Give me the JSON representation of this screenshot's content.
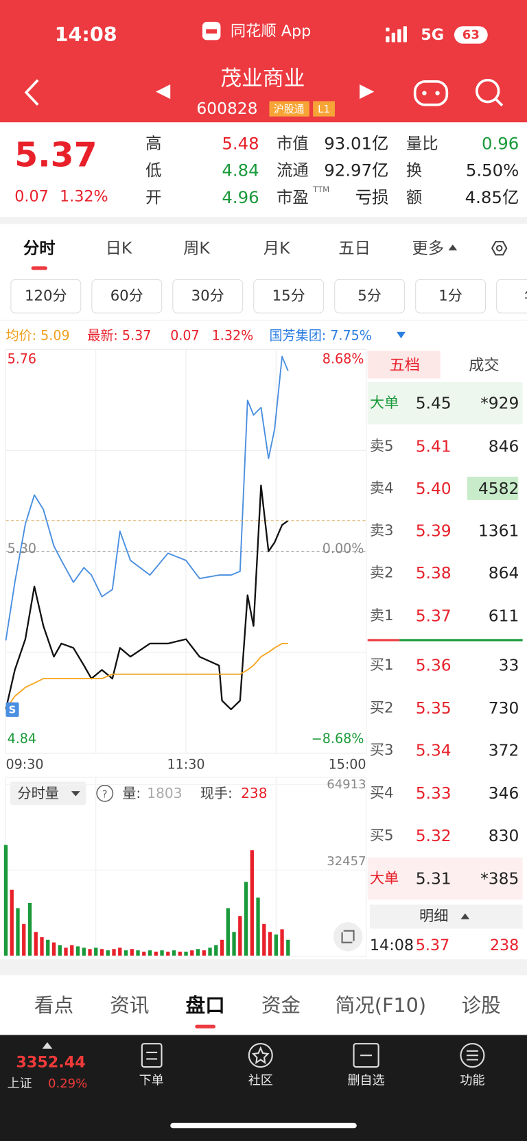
{
  "status_bar": {
    "time": "14:08",
    "app": "同花顺 App",
    "network": "5G",
    "battery": "63"
  },
  "header": {
    "title": "茂业商业",
    "code": "600828",
    "badges": [
      "沪股通",
      "L1"
    ]
  },
  "quote": {
    "price": "5.37",
    "change": "0.07",
    "change_pct": "1.32%",
    "stats": [
      {
        "label": "高",
        "value": "5.48",
        "color": "#e8202a"
      },
      {
        "label": "低",
        "value": "4.84",
        "color": "#1a9a3a"
      },
      {
        "label": "开",
        "value": "4.96",
        "color": "#1a9a3a"
      },
      {
        "label": "市值",
        "value": "93.01亿",
        "color": "#222222"
      },
      {
        "label": "流通",
        "value": "92.97亿",
        "color": "#222222"
      },
      {
        "label": "市盈",
        "sup": "TTM",
        "value": "亏损",
        "color": "#222222"
      },
      {
        "label": "量比",
        "value": "0.96",
        "color": "#1a9a3a"
      },
      {
        "label": "换",
        "value": "5.50%",
        "color": "#222222"
      },
      {
        "label": "额",
        "value": "4.85亿",
        "color": "#222222"
      }
    ]
  },
  "chart_tabs": [
    "分时",
    "日K",
    "周K",
    "月K",
    "五日",
    "更多"
  ],
  "periods": [
    "120分",
    "60分",
    "30分",
    "15分",
    "5分",
    "1分",
    "年"
  ],
  "info": [
    {
      "text": "均价: 5.09",
      "color": "#f0a020"
    },
    {
      "text": "最新: 5.37",
      "color": "#e8202a"
    },
    {
      "text": "0.07",
      "color": "#e8202a"
    },
    {
      "text": "1.32%",
      "color": "#e8202a"
    },
    {
      "text": "国芳集团: 7.75%",
      "color": "#2a7de1"
    }
  ],
  "minute_chart": {
    "type": "line",
    "x": [
      "09:30",
      "09:36",
      "09:43",
      "09:49",
      "09:55",
      "10:02",
      "10:07",
      "10:15",
      "10:22",
      "10:27",
      "10:34",
      "10:41",
      "10:46",
      "10:53",
      "11:06",
      "11:18",
      "11:30",
      "13:09",
      "13:22",
      "13:24",
      "13:30",
      "13:36",
      "13:41",
      "13:45",
      "13:50",
      "13:55",
      "13:59",
      "14:04",
      "14:08"
    ],
    "series": [
      {
        "color": "#111111",
        "values": [
          4.94,
          5.03,
          5.1,
          5.22,
          5.13,
          5.06,
          5.09,
          5.08,
          5.04,
          5.01,
          5.03,
          5.01,
          5.08,
          5.06,
          5.09,
          5.09,
          5.1,
          5.06,
          5.04,
          4.96,
          4.94,
          4.96,
          5.2,
          5.13,
          5.45,
          5.3,
          5.32,
          5.36,
          5.37
        ]
      },
      {
        "color": "#f5a623",
        "values": [
          4.94,
          4.97,
          4.99,
          5.0,
          5.01,
          5.01,
          5.01,
          5.01,
          5.01,
          5.01,
          5.01,
          5.02,
          5.02,
          5.02,
          5.02,
          5.02,
          5.02,
          5.02,
          5.02,
          5.02,
          5.02,
          5.02,
          5.03,
          5.04,
          5.06,
          5.07,
          5.08,
          5.09,
          5.09
        ]
      },
      {
        "color": "#4a8fe0",
        "axis": "y2",
        "values": [
          -3.83,
          -1.33,
          1.17,
          2.42,
          1.8,
          0.23,
          -0.39,
          -1.33,
          -0.7,
          -1.02,
          -1.95,
          -1.64,
          0.86,
          -0.39,
          -1.02,
          -0.08,
          -0.39,
          -1.17,
          -1.02,
          -1.02,
          -1.02,
          -0.86,
          6.49,
          5.86,
          6.18,
          3.99,
          5.24,
          8.37,
          7.75
        ]
      }
    ],
    "xlim": [
      "09:30",
      "15:00"
    ],
    "xticks": [
      "09:30",
      "11:30",
      "15:00"
    ],
    "ylim": [
      4.84,
      5.76
    ],
    "yticks": [
      4.84,
      {
        "value": 5.3,
        "label": "5.30"
      },
      5.76
    ],
    "y2lim": [
      -8.68,
      8.68
    ],
    "y2ticks": [
      {
        "value": -8.68,
        "label": "−8.68%"
      },
      {
        "value": 0,
        "label": "0.00%"
      },
      {
        "value": 8.68,
        "label": "8.68%"
      }
    ],
    "marker": "S"
  },
  "volume_chart": {
    "type": "bar",
    "label": "分时量",
    "volume_label": "量:",
    "volume": "1803",
    "hand_label": "现手:",
    "hand": "238",
    "x": [
      "09:30",
      "09:34",
      "09:38",
      "09:42",
      "09:46",
      "09:50",
      "09:54",
      "09:58",
      "10:02",
      "10:06",
      "10:10",
      "10:14",
      "10:18",
      "10:22",
      "10:26",
      "10:30",
      "10:34",
      "10:38",
      "10:42",
      "10:46",
      "10:50",
      "10:54",
      "10:58",
      "11:02",
      "11:06",
      "11:10",
      "11:14",
      "11:18",
      "11:22",
      "11:26",
      "11:30",
      "13:04",
      "13:08",
      "13:12",
      "13:16",
      "13:20",
      "13:24",
      "13:28",
      "13:32",
      "13:36",
      "13:40",
      "13:44",
      "13:48",
      "13:52",
      "13:56",
      "14:00",
      "14:04",
      "14:08"
    ],
    "values": [
      42000,
      25000,
      18000,
      12000,
      20000,
      9000,
      7000,
      6000,
      5000,
      4000,
      3000,
      4000,
      3500,
      3000,
      2500,
      3000,
      2500,
      2000,
      2500,
      3000,
      2000,
      2500,
      2000,
      1500,
      2000,
      1500,
      2000,
      1500,
      2000,
      1500,
      1500,
      2000,
      2500,
      2000,
      3000,
      4000,
      6000,
      18000,
      9000,
      15000,
      28000,
      40000,
      22000,
      12000,
      9000,
      8000,
      10000,
      6000
    ],
    "colors": [
      "#1a9a3a",
      "#e8202a",
      "#1a9a3a",
      "#e8202a",
      "#1a9a3a",
      "#e8202a",
      "#e8202a",
      "#1a9a3a",
      "#e8202a",
      "#1a9a3a",
      "#e8202a",
      "#e8202a",
      "#1a9a3a",
      "#1a9a3a",
      "#e8202a",
      "#1a9a3a",
      "#e8202a",
      "#1a9a3a",
      "#e8202a",
      "#e8202a",
      "#1a9a3a",
      "#e8202a",
      "#1a9a3a",
      "#e8202a",
      "#1a9a3a",
      "#e8202a",
      "#1a9a3a",
      "#e8202a",
      "#1a9a3a",
      "#e8202a",
      "#1a9a3a",
      "#e8202a",
      "#1a9a3a",
      "#e8202a",
      "#1a9a3a",
      "#1a9a3a",
      "#e8202a",
      "#1a9a3a",
      "#1a9a3a",
      "#e8202a",
      "#1a9a3a",
      "#e8202a",
      "#1a9a3a",
      "#e8202a",
      "#e8202a",
      "#1a9a3a",
      "#e8202a",
      "#1a9a3a"
    ],
    "ylim": [
      0,
      64913
    ],
    "yticks": [
      32457,
      64913
    ]
  },
  "order_book": {
    "tabs": [
      "五档",
      "成交"
    ],
    "rows": [
      {
        "label": "大单",
        "price": "5.45",
        "volume": "*929",
        "label_color": "#1a9a3a",
        "price_color": "#222222"
      },
      {
        "label": "卖5",
        "price": "5.41",
        "volume": "846",
        "label_color": "#555555",
        "price_color": "#e8202a"
      },
      {
        "label": "卖4",
        "price": "5.40",
        "volume": "4582",
        "label_color": "#555555",
        "price_color": "#e8202a"
      },
      {
        "label": "卖3",
        "price": "5.39",
        "volume": "1361",
        "label_color": "#555555",
        "price_color": "#e8202a"
      },
      {
        "label": "卖2",
        "price": "5.38",
        "volume": "864",
        "label_color": "#555555",
        "price_color": "#e8202a"
      },
      {
        "label": "卖1",
        "price": "5.37",
        "volume": "611",
        "label_color": "#555555",
        "price_color": "#e8202a"
      },
      {
        "label": "买1",
        "price": "5.36",
        "volume": "33",
        "label_color": "#555555",
        "price_color": "#e8202a"
      },
      {
        "label": "买2",
        "price": "5.35",
        "volume": "730",
        "label_color": "#555555",
        "price_color": "#e8202a"
      },
      {
        "label": "买3",
        "price": "5.34",
        "volume": "372",
        "label_color": "#555555",
        "price_color": "#e8202a"
      },
      {
        "label": "买4",
        "price": "5.33",
        "volume": "346",
        "label_color": "#555555",
        "price_color": "#e8202a"
      },
      {
        "label": "买5",
        "price": "5.32",
        "volume": "830",
        "label_color": "#555555",
        "price_color": "#e8202a"
      },
      {
        "label": "大单",
        "price": "5.31",
        "volume": "*385",
        "label_color": "#e8202a",
        "price_color": "#222222"
      }
    ],
    "detail": "明细",
    "trade": {
      "time": "14:08",
      "price": "5.37",
      "volume": "238"
    }
  },
  "bottom_tabs": [
    "看点",
    "资讯",
    "盘口",
    "资金",
    "简况(F10)",
    "诊股"
  ],
  "nav": {
    "index_value": "3352.44",
    "index_name": "上证",
    "index_pct": "0.29%",
    "items": [
      "下单",
      "社区",
      "删自选",
      "功能"
    ]
  }
}
